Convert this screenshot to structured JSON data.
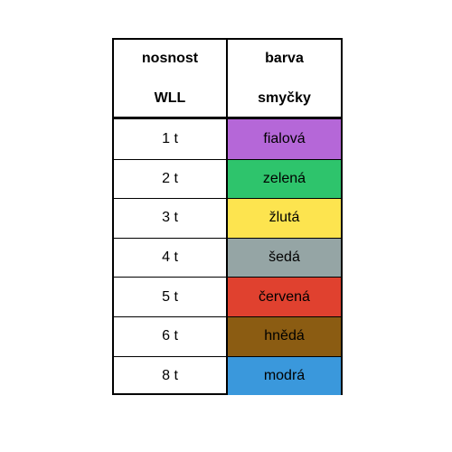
{
  "table": {
    "header": [
      [
        "nosnost",
        "WLL"
      ],
      [
        "barva",
        "smyčky"
      ]
    ],
    "rows": [
      {
        "load": "1 t",
        "color_name": "fialová",
        "color": "#b567d8"
      },
      {
        "load": "2 t",
        "color_name": "zelená",
        "color": "#2ec46c"
      },
      {
        "load": "3 t",
        "color_name": "žlutá",
        "color": "#fde44f"
      },
      {
        "load": "4 t",
        "color_name": "šedá",
        "color": "#95a5a5"
      },
      {
        "load": "5 t",
        "color_name": "červená",
        "color": "#e0412f"
      },
      {
        "load": "6 t",
        "color_name": "hnědá",
        "color": "#8b5c12"
      },
      {
        "load": "8 t",
        "color_name": "modrá",
        "color": "#3a98dc"
      }
    ]
  }
}
